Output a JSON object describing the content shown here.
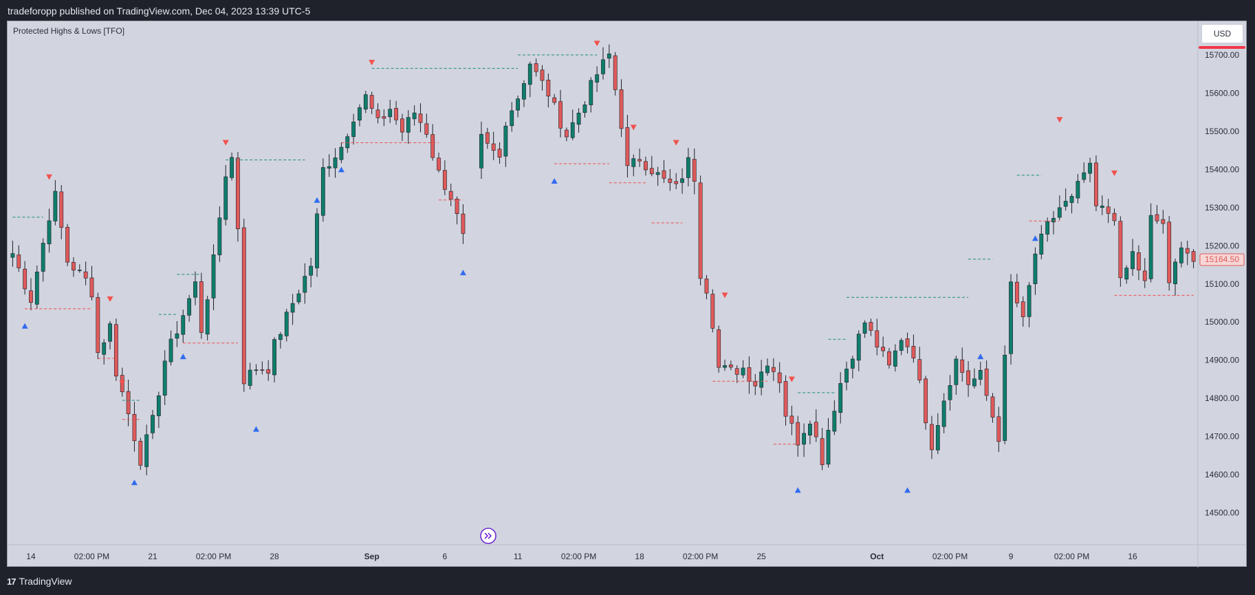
{
  "header": {
    "publish_line": "tradeforopp published on TradingView.com, Dec 04, 2023 13:39 UTC-5"
  },
  "indicator": {
    "title": "Protected Highs & Lows [TFO]"
  },
  "currency": {
    "label": "USD"
  },
  "footer": {
    "brand": "TradingView",
    "brand_mark": "17"
  },
  "colors": {
    "background": "#d2d4df",
    "bull": "#0f7d6c",
    "bear": "#e05a5a",
    "wick": "#1c1f27",
    "high_marker": "#f0524e",
    "low_marker": "#2f6bf0",
    "teal_line": "#1b8c7f",
    "red_line": "#ef4c4c",
    "price_tag": "#e05a5a"
  },
  "chart_data": {
    "type": "candlestick",
    "title": "Protected Highs & Lows [TFO]",
    "ylim": [
      14420,
      15790
    ],
    "y_ticks": [
      14500,
      14600,
      14700,
      14800,
      14900,
      15000,
      15100,
      15200,
      15300,
      15400,
      15500,
      15600,
      15700
    ],
    "y_tick_labels": [
      "14500.00",
      "14600.00",
      "14700.00",
      "14800.00",
      "14900.00",
      "15000.00",
      "15100.00",
      "15200.00",
      "15300.00",
      "15400.00",
      "15500.00",
      "15600.00",
      "15700.00"
    ],
    "x_range": [
      0,
      194
    ],
    "x_ticks": [
      {
        "x": 3,
        "label": "14"
      },
      {
        "x": 13,
        "label": "02:00 PM"
      },
      {
        "x": 23,
        "label": "21"
      },
      {
        "x": 33,
        "label": "02:00 PM"
      },
      {
        "x": 43,
        "label": "28"
      },
      {
        "x": 59,
        "label": "Sep",
        "bold": true
      },
      {
        "x": 71,
        "label": "6"
      },
      {
        "x": 83,
        "label": "11"
      },
      {
        "x": 93,
        "label": "02:00 PM"
      },
      {
        "x": 103,
        "label": "18"
      },
      {
        "x": 113,
        "label": "02:00 PM"
      },
      {
        "x": 123,
        "label": "25"
      },
      {
        "x": 142,
        "label": "Oct",
        "bold": true
      },
      {
        "x": 154,
        "label": "02:00 PM"
      },
      {
        "x": 164,
        "label": "9"
      },
      {
        "x": 174,
        "label": "02:00 PM"
      },
      {
        "x": 184,
        "label": "16"
      }
    ],
    "current_price": 15164.5,
    "current_price_label": "15164.50",
    "anchors": [
      [
        0,
        15180
      ],
      [
        3,
        15060
      ],
      [
        6,
        15280
      ],
      [
        7,
        15330
      ],
      [
        9,
        15160
      ],
      [
        12,
        15110
      ],
      [
        13,
        15080
      ],
      [
        14,
        14920
      ],
      [
        16,
        14990
      ],
      [
        17,
        14870
      ],
      [
        19,
        14760
      ],
      [
        21,
        14640
      ],
      [
        23,
        14740
      ],
      [
        25,
        14900
      ],
      [
        27,
        14980
      ],
      [
        30,
        15100
      ],
      [
        31,
        14980
      ],
      [
        33,
        15160
      ],
      [
        35,
        15390
      ],
      [
        36,
        15430
      ],
      [
        37,
        15250
      ],
      [
        38,
        14850
      ],
      [
        40,
        14880
      ],
      [
        42,
        14880
      ],
      [
        43,
        14940
      ],
      [
        46,
        15050
      ],
      [
        49,
        15150
      ],
      [
        51,
        15400
      ],
      [
        54,
        15460
      ],
      [
        56,
        15540
      ],
      [
        58,
        15590
      ],
      [
        60,
        15520
      ],
      [
        62,
        15560
      ],
      [
        64,
        15500
      ],
      [
        66,
        15550
      ],
      [
        68,
        15500
      ],
      [
        69,
        15440
      ],
      [
        70,
        15390
      ],
      [
        72,
        15330
      ],
      [
        74,
        15220
      ],
      [
        77,
        15480
      ],
      [
        78,
        15460
      ],
      [
        80,
        15430
      ],
      [
        81,
        15530
      ],
      [
        83,
        15590
      ],
      [
        85,
        15680
      ],
      [
        86,
        15650
      ],
      [
        88,
        15600
      ],
      [
        89,
        15560
      ],
      [
        91,
        15490
      ],
      [
        93,
        15550
      ],
      [
        96,
        15650
      ],
      [
        98,
        15700
      ],
      [
        100,
        15520
      ],
      [
        101,
        15400
      ],
      [
        103,
        15430
      ],
      [
        105,
        15400
      ],
      [
        107,
        15370
      ],
      [
        109,
        15350
      ],
      [
        111,
        15420
      ],
      [
        112,
        15380
      ],
      [
        113,
        15130
      ],
      [
        114,
        15090
      ],
      [
        115,
        15000
      ],
      [
        116,
        14880
      ],
      [
        118,
        14870
      ],
      [
        120,
        14880
      ],
      [
        122,
        14840
      ],
      [
        124,
        14900
      ],
      [
        126,
        14850
      ],
      [
        127,
        14760
      ],
      [
        129,
        14690
      ],
      [
        131,
        14750
      ],
      [
        133,
        14640
      ],
      [
        134,
        14720
      ],
      [
        136,
        14840
      ],
      [
        138,
        14920
      ],
      [
        140,
        15000
      ],
      [
        142,
        14940
      ],
      [
        144,
        14880
      ],
      [
        146,
        14960
      ],
      [
        148,
        14920
      ],
      [
        150,
        14750
      ],
      [
        151,
        14680
      ],
      [
        153,
        14800
      ],
      [
        155,
        14900
      ],
      [
        157,
        14840
      ],
      [
        159,
        14860
      ],
      [
        162,
        14700
      ],
      [
        164,
        15100
      ],
      [
        166,
        15000
      ],
      [
        168,
        15180
      ],
      [
        170,
        15250
      ],
      [
        172,
        15300
      ],
      [
        174,
        15320
      ],
      [
        176,
        15390
      ],
      [
        177,
        15400
      ],
      [
        178,
        15300
      ],
      [
        181,
        15280
      ],
      [
        182,
        15100
      ],
      [
        184,
        15180
      ],
      [
        186,
        15100
      ],
      [
        187,
        15270
      ],
      [
        189,
        15260
      ],
      [
        190,
        15090
      ],
      [
        192,
        15210
      ],
      [
        194,
        15160
      ]
    ],
    "gap": [
      75,
      76
    ],
    "markers": [
      {
        "x": 6,
        "price": 15380,
        "dir": "down",
        "label": ""
      },
      {
        "x": 2,
        "price": 14990,
        "dir": "up",
        "label": ""
      },
      {
        "x": 16,
        "price": 15060,
        "dir": "down",
        "label": ""
      },
      {
        "x": 18,
        "price": 14840,
        "dir": "down",
        "label": ""
      },
      {
        "x": 20,
        "price": 14580,
        "dir": "up",
        "label": ""
      },
      {
        "x": 28,
        "price": 14910,
        "dir": "up",
        "label": ""
      },
      {
        "x": 35,
        "price": 15470,
        "dir": "down",
        "label": ""
      },
      {
        "x": 40,
        "price": 14720,
        "dir": "up",
        "label": ""
      },
      {
        "x": 50,
        "price": 15320,
        "dir": "up",
        "label": ""
      },
      {
        "x": 54,
        "price": 15400,
        "dir": "up",
        "label": ""
      },
      {
        "x": 59,
        "price": 15680,
        "dir": "down",
        "label": ""
      },
      {
        "x": 74,
        "price": 15130,
        "dir": "up",
        "label": ""
      },
      {
        "x": 89,
        "price": 15370,
        "dir": "up",
        "label": ""
      },
      {
        "x": 96,
        "price": 15730,
        "dir": "down",
        "label": ""
      },
      {
        "x": 102,
        "price": 15510,
        "dir": "down",
        "label": ""
      },
      {
        "x": 109,
        "price": 15470,
        "dir": "down",
        "label": ""
      },
      {
        "x": 117,
        "price": 15070,
        "dir": "down",
        "label": ""
      },
      {
        "x": 128,
        "price": 14850,
        "dir": "down",
        "label": ""
      },
      {
        "x": 129,
        "price": 14560,
        "dir": "up",
        "label": ""
      },
      {
        "x": 147,
        "price": 14560,
        "dir": "up",
        "label": ""
      },
      {
        "x": 159,
        "price": 14910,
        "dir": "up",
        "label": ""
      },
      {
        "x": 168,
        "price": 15220,
        "dir": "up",
        "label": ""
      },
      {
        "x": 172,
        "price": 15530,
        "dir": "down",
        "label": ""
      },
      {
        "x": 181,
        "price": 15390,
        "dir": "down",
        "label": ""
      }
    ],
    "levels": [
      {
        "x1": 0,
        "x2": 5,
        "price": 15275,
        "kind": "high"
      },
      {
        "x1": 2,
        "x2": 13,
        "price": 15035,
        "kind": "low"
      },
      {
        "x1": 14,
        "x2": 17,
        "price": 14905,
        "kind": "low"
      },
      {
        "x1": 18,
        "x2": 21,
        "price": 14745,
        "kind": "low"
      },
      {
        "x1": 18,
        "x2": 21,
        "price": 14795,
        "kind": "high"
      },
      {
        "x1": 24,
        "x2": 27,
        "price": 15020,
        "kind": "high"
      },
      {
        "x1": 27,
        "x2": 31,
        "price": 15125,
        "kind": "high"
      },
      {
        "x1": 28,
        "x2": 37,
        "price": 14945,
        "kind": "low"
      },
      {
        "x1": 35,
        "x2": 48,
        "price": 15425,
        "kind": "high"
      },
      {
        "x1": 54,
        "x2": 70,
        "price": 15470,
        "kind": "low"
      },
      {
        "x1": 59,
        "x2": 83,
        "price": 15665,
        "kind": "high"
      },
      {
        "x1": 70,
        "x2": 74,
        "price": 15320,
        "kind": "low"
      },
      {
        "x1": 83,
        "x2": 96,
        "price": 15700,
        "kind": "high"
      },
      {
        "x1": 89,
        "x2": 98,
        "price": 15415,
        "kind": "low"
      },
      {
        "x1": 98,
        "x2": 104,
        "price": 15365,
        "kind": "low"
      },
      {
        "x1": 105,
        "x2": 110,
        "price": 15260,
        "kind": "low"
      },
      {
        "x1": 115,
        "x2": 124,
        "price": 14845,
        "kind": "low"
      },
      {
        "x1": 125,
        "x2": 129,
        "price": 14680,
        "kind": "low"
      },
      {
        "x1": 129,
        "x2": 135,
        "price": 14815,
        "kind": "high"
      },
      {
        "x1": 134,
        "x2": 137,
        "price": 14955,
        "kind": "high"
      },
      {
        "x1": 137,
        "x2": 157,
        "price": 15065,
        "kind": "high"
      },
      {
        "x1": 157,
        "x2": 161,
        "price": 15165,
        "kind": "high"
      },
      {
        "x1": 165,
        "x2": 169,
        "price": 15385,
        "kind": "high"
      },
      {
        "x1": 167,
        "x2": 172,
        "price": 15265,
        "kind": "low"
      },
      {
        "x1": 181,
        "x2": 194,
        "price": 15070,
        "kind": "low"
      }
    ]
  }
}
